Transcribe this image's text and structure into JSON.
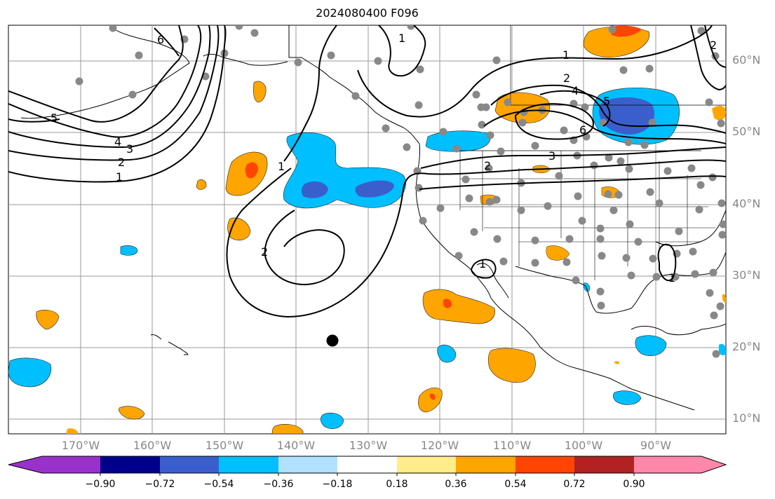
{
  "title": "2024080400 F096",
  "map": {
    "latitude_labels": [
      "60°N",
      "50°N",
      "40°N",
      "30°N",
      "20°N",
      "10°N"
    ],
    "longitude_labels": [
      "170°W",
      "160°W",
      "150°W",
      "140°W",
      "130°W",
      "120°W",
      "110°W",
      "100°W",
      "90°W"
    ],
    "contour_labels": [
      "1",
      "2",
      "3",
      "4",
      "5",
      "6"
    ],
    "grid_color": "#999999"
  },
  "colorbar": {
    "ticks": [
      "−0.90",
      "−0.72",
      "−0.54",
      "−0.36",
      "−0.18",
      "0.18",
      "0.36",
      "0.54",
      "0.72",
      "0.90"
    ],
    "colors": [
      "#9932CC",
      "#00008B",
      "#3A5FCD",
      "#00BFFF",
      "#B0E2FF",
      "#FFFFFF",
      "#FFEC8B",
      "#FFA500",
      "#FF4500",
      "#B22222",
      "#FF88AA"
    ]
  }
}
